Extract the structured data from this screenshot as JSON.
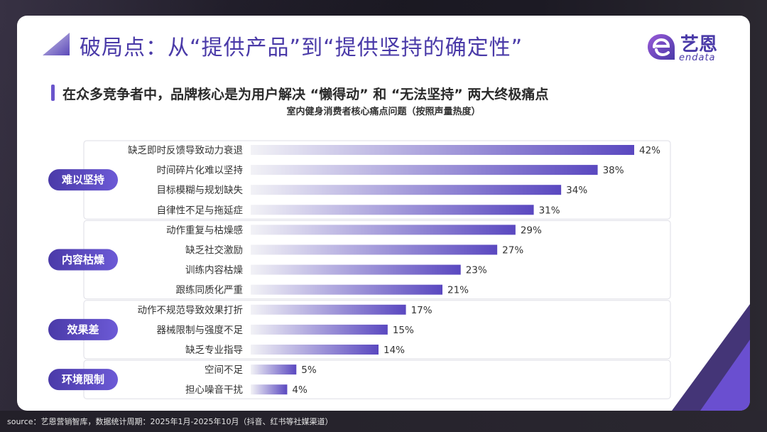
{
  "header": {
    "title": "破局点：从“提供产品”到“提供坚持的确定性”",
    "subtitle": "在众多竞争者中，品牌核心是为用户解决 “懒得动” 和 “无法坚持” 两大终极痛点"
  },
  "logo": {
    "name_cn": "艺恩",
    "name_en": "endata"
  },
  "colors": {
    "accent": "#4a3aa8",
    "bar_end": "#5a48c0",
    "bar_start": "#f2f2f6",
    "pill": "#5b4bc4"
  },
  "source": "source：艺恩营销智库，数据统计周期：2025年1月-2025年10月（抖音、红书等社媒渠道）",
  "chart_data": {
    "type": "bar",
    "orientation": "horizontal",
    "title": "室内健身消费者核心痛点问题（按照声量热度）",
    "value_suffix": "%",
    "groups": [
      {
        "label": "难以坚持",
        "items": [
          {
            "category": "缺乏即时反馈导致动力衰退",
            "value": 42
          },
          {
            "category": "时间碎片化难以坚持",
            "value": 38
          },
          {
            "category": "目标模糊与规划缺失",
            "value": 34
          },
          {
            "category": "自律性不足与拖延症",
            "value": 31
          }
        ]
      },
      {
        "label": "内容枯燥",
        "items": [
          {
            "category": "动作重复与枯燥感",
            "value": 29
          },
          {
            "category": "缺乏社交激励",
            "value": 27
          },
          {
            "category": "训练内容枯燥",
            "value": 23
          },
          {
            "category": "跟练同质化严重",
            "value": 21
          }
        ]
      },
      {
        "label": "效果差",
        "items": [
          {
            "category": "动作不规范导致效果打折",
            "value": 17
          },
          {
            "category": "器械限制与强度不足",
            "value": 15
          },
          {
            "category": "缺乏专业指导",
            "value": 14
          }
        ]
      },
      {
        "label": "环境限制",
        "items": [
          {
            "category": "空间不足",
            "value": 5
          },
          {
            "category": "担心噪音干扰",
            "value": 4
          }
        ]
      }
    ],
    "xlim": [
      0,
      42
    ],
    "grid": false,
    "legend": "none"
  }
}
